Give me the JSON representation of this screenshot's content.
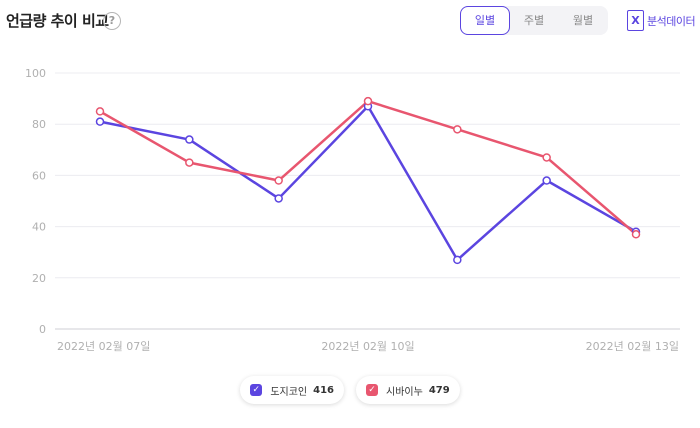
{
  "header": {
    "title": "언급량 추이 비교",
    "help_glyph": "?",
    "tabs": [
      {
        "label": "일별",
        "active": true
      },
      {
        "label": "주별",
        "active": false
      },
      {
        "label": "월별",
        "active": false
      }
    ],
    "export_glyph": "X",
    "export_label": "분석데이터"
  },
  "colors": {
    "accent": "#5b45e0",
    "series_1": "#5b45e0",
    "series_2": "#e8566f"
  },
  "chart_data": {
    "type": "line",
    "categories": [
      "2022년 02월 07일",
      "",
      "",
      "2022년 02월 10일",
      "",
      "",
      "2022년 02월 13일"
    ],
    "ylim": [
      0,
      100
    ],
    "yticks": [
      0,
      20,
      40,
      60,
      80,
      100
    ],
    "grid": true,
    "legend_position": "bottom",
    "series": [
      {
        "name": "도지코인",
        "count": "416",
        "color": "#5b45e0",
        "values": [
          81,
          74,
          51,
          87,
          27,
          58,
          38
        ]
      },
      {
        "name": "시바이누",
        "count": "479",
        "color": "#e8566f",
        "values": [
          85,
          65,
          58,
          89,
          78,
          67,
          37
        ]
      }
    ]
  }
}
